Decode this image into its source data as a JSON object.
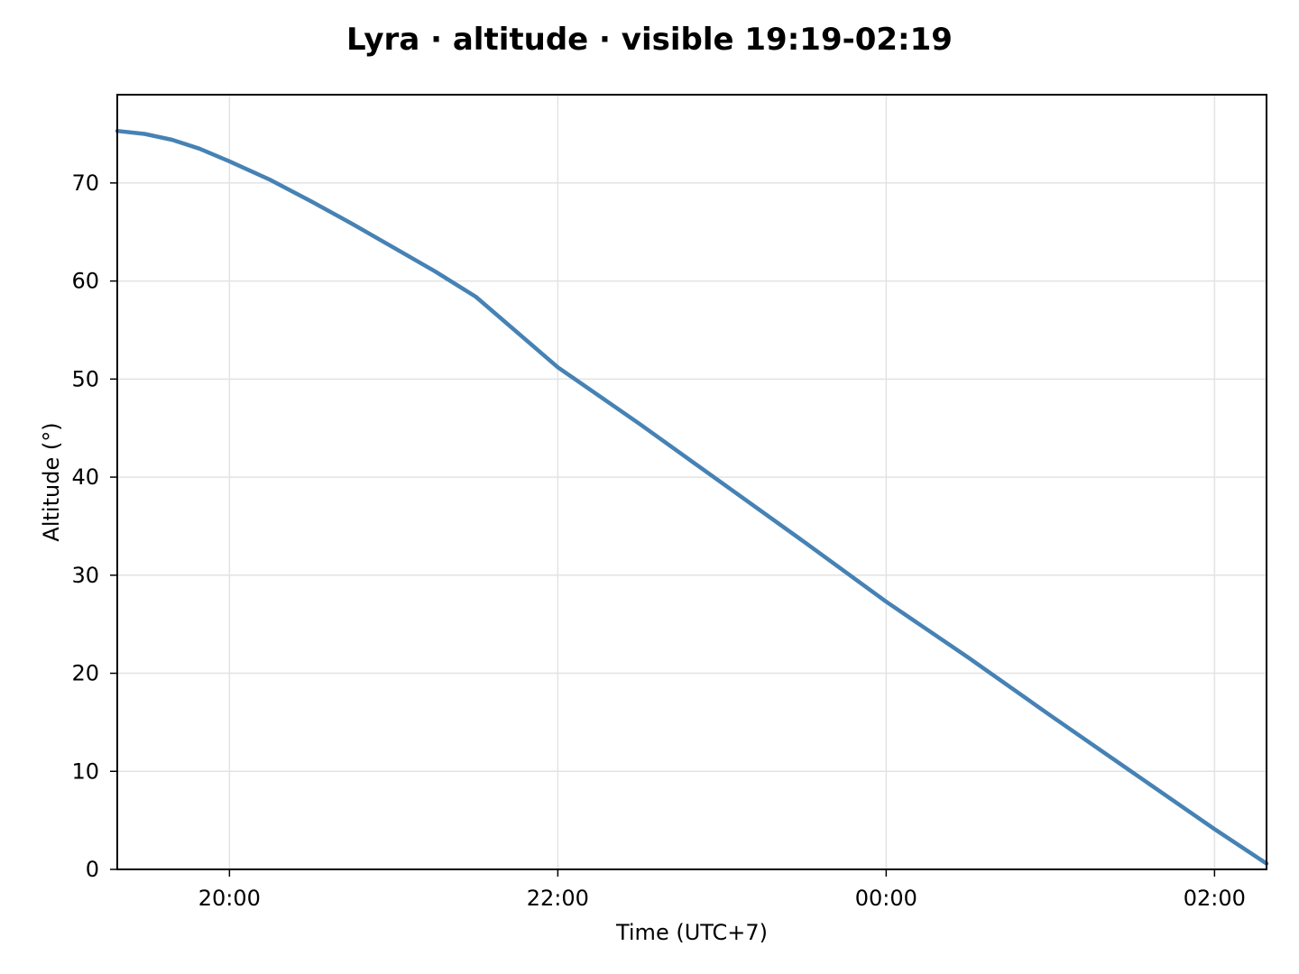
{
  "chart_data": {
    "type": "line",
    "title": "Lyra · altitude · visible 19:19-02:19",
    "xlabel": "Time (UTC+7)",
    "ylabel": "Altitude (°)",
    "x_ticks": [
      {
        "value": "20:00",
        "label": "20:00"
      },
      {
        "value": "22:00",
        "label": "22:00"
      },
      {
        "value": "00:00",
        "label": "00:00"
      },
      {
        "value": "02:00",
        "label": "02:00"
      }
    ],
    "y_ticks": [
      0,
      10,
      20,
      30,
      40,
      50,
      60,
      70
    ],
    "xlim": [
      "19:19",
      "02:19"
    ],
    "ylim": [
      0,
      79
    ],
    "grid": true,
    "series": [
      {
        "color": "#4682b4",
        "points": [
          {
            "x": "19:19",
            "y": 75.3
          },
          {
            "x": "19:29",
            "y": 75.0
          },
          {
            "x": "19:39",
            "y": 74.4
          },
          {
            "x": "19:49",
            "y": 73.5
          },
          {
            "x": "20:00",
            "y": 72.2
          },
          {
            "x": "20:15",
            "y": 70.3
          },
          {
            "x": "20:30",
            "y": 68.1
          },
          {
            "x": "20:45",
            "y": 65.8
          },
          {
            "x": "21:00",
            "y": 63.4
          },
          {
            "x": "21:15",
            "y": 61.0
          },
          {
            "x": "21:30",
            "y": 58.4
          },
          {
            "x": "22:00",
            "y": 51.2
          },
          {
            "x": "22:30",
            "y": 45.4
          },
          {
            "x": "23:00",
            "y": 39.4
          },
          {
            "x": "23:30",
            "y": 33.4
          },
          {
            "x": "00:00",
            "y": 27.3
          },
          {
            "x": "00:30",
            "y": 21.6
          },
          {
            "x": "01:00",
            "y": 15.7
          },
          {
            "x": "01:30",
            "y": 9.9
          },
          {
            "x": "02:00",
            "y": 4.1
          },
          {
            "x": "02:19",
            "y": 0.6
          }
        ]
      }
    ]
  }
}
